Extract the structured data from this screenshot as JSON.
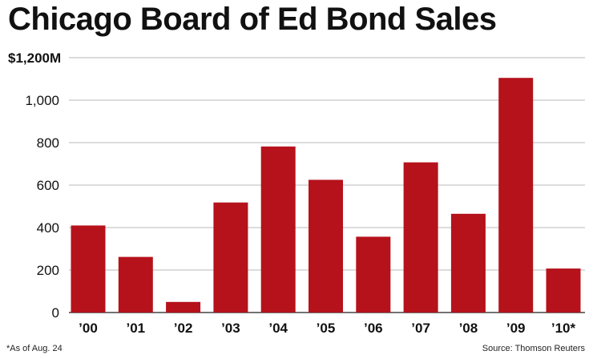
{
  "chart_data": {
    "type": "bar",
    "title": "Chicago Board of Ed Bond Sales",
    "xlabel": "",
    "ylabel": "",
    "categories": [
      "’00",
      "’01",
      "’02",
      "’03",
      "’04",
      "’05",
      "’06",
      "’07",
      "’08",
      "’09",
      "’10*"
    ],
    "values": [
      410,
      262,
      50,
      518,
      782,
      625,
      357,
      707,
      465,
      1105,
      207
    ],
    "ylim": [
      0,
      1200
    ],
    "yticks": [
      0,
      200,
      400,
      600,
      800,
      1000,
      1200
    ],
    "ytick_labels": [
      "0",
      "200",
      "400",
      "600",
      "800",
      "1,000",
      "$1,200M"
    ],
    "grid": true,
    "bar_color": "#b5121b",
    "footnote": "*As of Aug. 24",
    "source": "Source: Thomson Reuters"
  }
}
